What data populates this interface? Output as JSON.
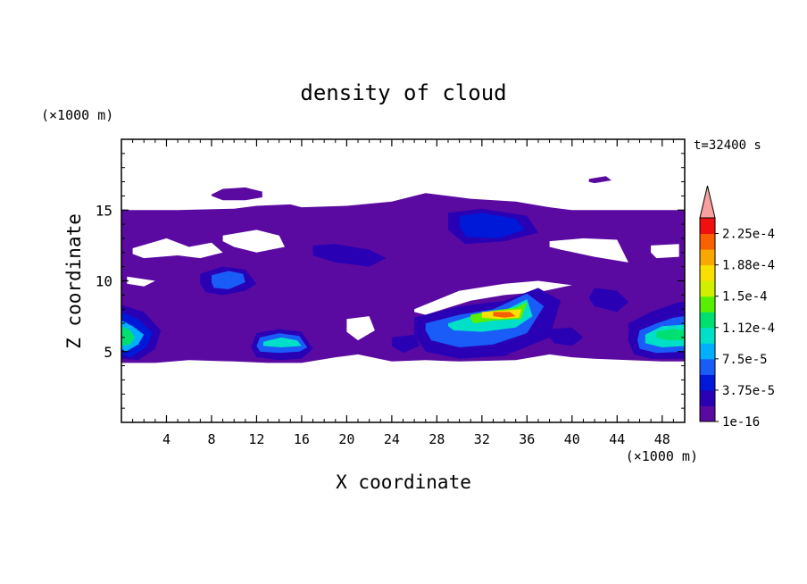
{
  "chart_data": {
    "type": "heatmap",
    "title": "density of cloud",
    "xlabel": "X coordinate",
    "ylabel": "Z coordinate",
    "x_unit": "(×1000 m)",
    "y_unit": "(×1000 m)",
    "time_label": "t=32400 s",
    "xlim": [
      0,
      50
    ],
    "ylim": [
      0,
      20
    ],
    "x_ticks": [
      4,
      8,
      12,
      16,
      20,
      24,
      28,
      32,
      36,
      40,
      44,
      48
    ],
    "y_ticks": [
      5,
      10,
      15
    ],
    "colorbar": {
      "labels": [
        "1e-16",
        "3.75e-5",
        "7.5e-5",
        "1.12e-4",
        "1.5e-4",
        "1.88e-4",
        "2.25e-4"
      ],
      "colors": [
        "#5a0aa0",
        "#2a00b4",
        "#0018d8",
        "#1a5cf8",
        "#00b0ff",
        "#00e0c8",
        "#00e070",
        "#58f000",
        "#d0f000",
        "#f8e000",
        "#f8a800",
        "#f86000",
        "#f01010",
        "#f8a0a0"
      ]
    },
    "regions": [
      {
        "level": 0,
        "x": [
          0,
          5,
          10,
          12,
          15,
          16,
          20,
          24,
          27,
          31,
          35,
          38,
          40,
          45,
          50,
          50,
          48,
          45,
          42,
          40,
          38,
          35,
          30,
          27,
          24,
          21,
          19,
          16,
          13,
          10,
          6,
          3,
          0
        ],
        "z": [
          15,
          15,
          15.1,
          15.3,
          15.4,
          15.2,
          15.3,
          15.6,
          16.2,
          15.8,
          15.6,
          15.2,
          15,
          15,
          15,
          4.3,
          4.3,
          4.4,
          4.5,
          4.6,
          4.8,
          4.4,
          4.3,
          4.4,
          4.3,
          4.8,
          4.6,
          4.2,
          4.2,
          4.3,
          4.4,
          4.2,
          4.2
        ]
      },
      {
        "level": 0,
        "x": [
          8,
          9,
          11,
          12.5,
          12.5,
          11,
          9,
          8
        ],
        "z": [
          16.1,
          16.5,
          16.6,
          16.3,
          15.9,
          15.7,
          15.7,
          16.0
        ]
      },
      {
        "level": 0,
        "x": [
          41.5,
          43,
          43.5,
          42,
          41.5
        ],
        "z": [
          17.2,
          17.4,
          17.1,
          16.9,
          17.0
        ]
      }
    ],
    "holes": [
      {
        "x": [
          1,
          4,
          6,
          8,
          9,
          7,
          5,
          2,
          1
        ],
        "z": [
          12.3,
          13.0,
          12.4,
          12.7,
          12.0,
          11.6,
          11.8,
          11.6,
          11.9
        ]
      },
      {
        "x": [
          9,
          12,
          14,
          14.5,
          12,
          10,
          9
        ],
        "z": [
          13.2,
          13.6,
          13.2,
          12.4,
          12.0,
          12.4,
          12.8
        ]
      },
      {
        "x": [
          26,
          30,
          34,
          37,
          40,
          37,
          34,
          31,
          29,
          27,
          26
        ],
        "z": [
          8.0,
          9.3,
          9.8,
          10.0,
          9.7,
          9.2,
          9.0,
          8.6,
          8.1,
          7.6,
          7.8
        ]
      },
      {
        "x": [
          20,
          22,
          22.5,
          21,
          20
        ],
        "z": [
          7.3,
          7.5,
          6.5,
          5.8,
          6.4
        ]
      },
      {
        "x": [
          38,
          41,
          44,
          45,
          42,
          39,
          38
        ],
        "z": [
          12.8,
          13.0,
          12.9,
          11.3,
          11.7,
          12.2,
          12.4
        ]
      },
      {
        "x": [
          47,
          49.5,
          49.5,
          47.5,
          47
        ],
        "z": [
          12.5,
          12.6,
          11.7,
          11.6,
          12.0
        ]
      },
      {
        "x": [
          0.5,
          3,
          2,
          0.5
        ],
        "z": [
          10.3,
          10.0,
          9.6,
          9.8
        ]
      }
    ],
    "blobs": [
      {
        "level": 1,
        "x": [
          0,
          2,
          3.5,
          3,
          1.5,
          0
        ],
        "z": [
          8.3,
          7.8,
          6.5,
          5.2,
          4.4,
          4.5
        ]
      },
      {
        "level": 2,
        "x": [
          0,
          1.5,
          2.8,
          2.2,
          0.8,
          0
        ],
        "z": [
          7.8,
          7.3,
          6.3,
          5.3,
          4.6,
          4.8
        ]
      },
      {
        "level": 4,
        "x": [
          0,
          1,
          2,
          1.5,
          0.4,
          0
        ],
        "z": [
          7.2,
          6.8,
          6.2,
          5.5,
          5.0,
          5.2
        ]
      },
      {
        "level": 6,
        "x": [
          0,
          0.8,
          1.2,
          0.8,
          0
        ],
        "z": [
          6.8,
          6.5,
          6.0,
          5.5,
          5.4
        ]
      },
      {
        "level": 1,
        "x": [
          12,
          14,
          16,
          17,
          16,
          14,
          12,
          11.5
        ],
        "z": [
          6.3,
          6.6,
          6.4,
          5.2,
          4.5,
          4.4,
          4.6,
          5.3
        ]
      },
      {
        "level": 3,
        "x": [
          12.3,
          14,
          15.8,
          16.5,
          15.8,
          14,
          12.3,
          12
        ],
        "z": [
          6.0,
          6.3,
          6.1,
          5.3,
          5.0,
          4.9,
          5.0,
          5.4
        ]
      },
      {
        "level": 5,
        "x": [
          12.6,
          14.2,
          15.6,
          16,
          14.2,
          12.6
        ],
        "z": [
          5.7,
          6.0,
          5.8,
          5.4,
          5.3,
          5.4
        ]
      },
      {
        "level": 1,
        "x": [
          7,
          9,
          11,
          12,
          11,
          9,
          7.5,
          7
        ],
        "z": [
          10.5,
          11.0,
          10.8,
          9.8,
          9.3,
          9.0,
          9.2,
          9.8
        ]
      },
      {
        "level": 3,
        "x": [
          8,
          9.5,
          10.8,
          11,
          9.5,
          8.2,
          8
        ],
        "z": [
          10.4,
          10.7,
          10.5,
          9.9,
          9.4,
          9.5,
          9.9
        ]
      },
      {
        "level": 1,
        "x": [
          26,
          30,
          34,
          37,
          39,
          38,
          34,
          30,
          27,
          26
        ],
        "z": [
          7.4,
          8.2,
          8.6,
          9.5,
          8.6,
          6.0,
          4.7,
          4.5,
          5.0,
          6.2
        ]
      },
      {
        "level": 3,
        "x": [
          27,
          30,
          33,
          36,
          37.5,
          36,
          33,
          30,
          27.5,
          27
        ],
        "z": [
          7.0,
          7.6,
          8.0,
          9.1,
          8.2,
          6.3,
          5.5,
          5.3,
          5.8,
          6.5
        ]
      },
      {
        "level": 5,
        "x": [
          29,
          31.5,
          34,
          36,
          36.5,
          35,
          32,
          29.5,
          29
        ],
        "z": [
          7.0,
          7.6,
          7.9,
          8.7,
          7.5,
          6.7,
          6.4,
          6.5,
          6.8
        ]
      },
      {
        "level": 7,
        "x": [
          31,
          33,
          35,
          36,
          35.5,
          33,
          31.3,
          31
        ],
        "z": [
          7.6,
          7.9,
          8.1,
          8.5,
          7.3,
          7.2,
          7.0,
          7.3
        ]
      },
      {
        "level": 9,
        "x": [
          32,
          34,
          35.5,
          35.3,
          33.5,
          32
        ],
        "z": [
          7.8,
          7.9,
          8.0,
          7.4,
          7.3,
          7.4
        ]
      },
      {
        "level": 11,
        "x": [
          33,
          34.5,
          35,
          34,
          33
        ],
        "z": [
          7.8,
          7.8,
          7.5,
          7.4,
          7.5
        ]
      },
      {
        "level": 1,
        "x": [
          45,
          47,
          49.5,
          50,
          50,
          47,
          45.5,
          45
        ],
        "z": [
          7.0,
          7.8,
          8.5,
          8.5,
          4.5,
          4.5,
          4.8,
          5.8
        ]
      },
      {
        "level": 3,
        "x": [
          46,
          47.5,
          49,
          50,
          50,
          47.5,
          46,
          45.8
        ],
        "z": [
          6.5,
          7.0,
          7.4,
          7.5,
          5.0,
          4.9,
          5.2,
          5.8
        ]
      },
      {
        "level": 5,
        "x": [
          46.5,
          48,
          50,
          50,
          48,
          46.5
        ],
        "z": [
          6.2,
          6.8,
          6.9,
          5.4,
          5.3,
          5.6
        ]
      },
      {
        "level": 6,
        "x": [
          47.5,
          49,
          50,
          50,
          48.5,
          47.5
        ],
        "z": [
          6.4,
          6.6,
          6.5,
          5.8,
          5.8,
          6.0
        ]
      },
      {
        "level": 1,
        "x": [
          29,
          32,
          36,
          37,
          34,
          30.5,
          29
        ],
        "z": [
          14.8,
          15.1,
          14.6,
          13.4,
          12.8,
          12.6,
          13.6
        ]
      },
      {
        "level": 2,
        "x": [
          30,
          32,
          35,
          35.8,
          33.5,
          30.6,
          30
        ],
        "z": [
          14.6,
          14.8,
          14.4,
          13.6,
          13.0,
          13.1,
          13.8
        ]
      },
      {
        "level": 1,
        "x": [
          17,
          19,
          22,
          23.5,
          22,
          19,
          17
        ],
        "z": [
          12.5,
          12.6,
          12.2,
          11.6,
          11.0,
          11.3,
          11.8
        ]
      },
      {
        "level": 1,
        "x": [
          38,
          40,
          41,
          40,
          38.4,
          38
        ],
        "z": [
          6.6,
          6.7,
          6.0,
          5.4,
          5.6,
          6.0
        ]
      },
      {
        "level": 1,
        "x": [
          42,
          44,
          45,
          44,
          42,
          41.5
        ],
        "z": [
          9.5,
          9.3,
          8.5,
          7.8,
          8.2,
          8.8
        ]
      },
      {
        "level": 1,
        "x": [
          24,
          26,
          26.5,
          25,
          24
        ],
        "z": [
          6.0,
          6.2,
          5.4,
          4.9,
          5.4
        ]
      }
    ]
  }
}
